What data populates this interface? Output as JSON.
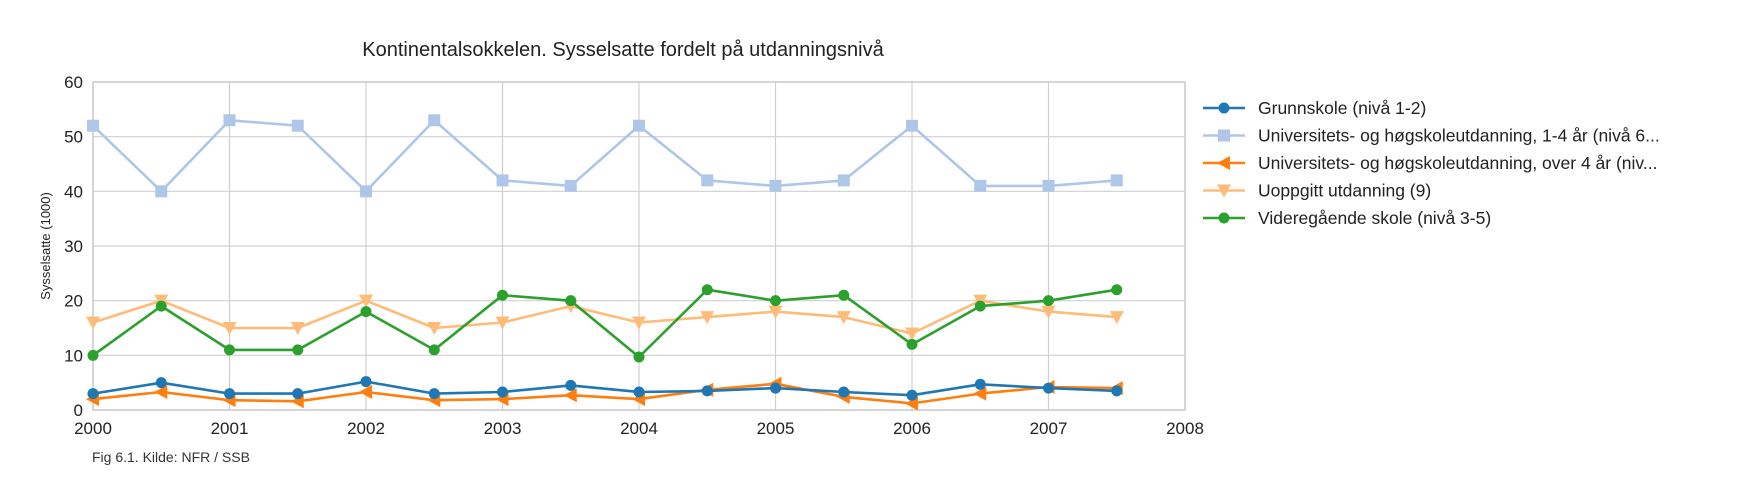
{
  "chart_data": {
    "type": "line",
    "title": "Kontinentalsokkelen. Sysselsatte fordelt på utdanningsnivå",
    "xlabel": "",
    "ylabel": "Sysselsatte (1000)",
    "xlim": [
      2000,
      2008
    ],
    "ylim": [
      0,
      60
    ],
    "x_ticks": [
      2000,
      2001,
      2002,
      2003,
      2004,
      2005,
      2006,
      2007,
      2008
    ],
    "y_ticks": [
      0,
      10,
      20,
      30,
      40,
      50,
      60
    ],
    "grid": true,
    "legend_position": "right",
    "x": [
      2000,
      2000.5,
      2001,
      2001.5,
      2002,
      2002.5,
      2003,
      2003.5,
      2004,
      2004.5,
      2005,
      2005.5,
      2006,
      2006.5,
      2007,
      2007.5
    ],
    "series": [
      {
        "name": "Grunnskole (nivå 1-2)",
        "legend_label": "Grunnskole (nivå 1-2)",
        "color": "#1f77b4",
        "light_color": "#1f77b4",
        "marker": "circle",
        "values": [
          3,
          5,
          3,
          3,
          5.2,
          3,
          3.3,
          4.5,
          3.3,
          3.5,
          4,
          3.3,
          2.7,
          4.7,
          4,
          3.5
        ]
      },
      {
        "name": "Universitets- og høgskoleutdanning, 1-4 år (nivå 6",
        "legend_label": "Universitets- og høgskoleutdanning, 1-4 år (nivå 6...",
        "color": "#aec7e8",
        "marker": "square",
        "values": [
          52,
          40,
          53,
          52,
          40,
          53,
          42,
          41,
          52,
          42,
          41,
          42,
          52,
          41,
          41,
          42
        ]
      },
      {
        "name": "Universitets- og høgskoleutdanning, over 4 år (niv",
        "legend_label": "Universitets- og høgskoleutdanning, over 4 år (niv...",
        "color": "#ff7f0e",
        "marker": "triangle-left",
        "values": [
          2,
          3.3,
          1.8,
          1.6,
          3.3,
          1.8,
          2,
          2.7,
          2,
          3.7,
          4.8,
          2.4,
          1.2,
          3,
          4.2,
          4
        ]
      },
      {
        "name": "Uoppgitt utdanning (9)",
        "legend_label": "Uoppgitt utdanning (9)",
        "color": "#ffbb78",
        "marker": "triangle-down",
        "values": [
          16,
          20,
          15,
          15,
          20,
          15,
          16,
          19,
          16,
          17,
          18,
          17,
          14,
          20,
          18,
          17
        ]
      },
      {
        "name": "Videregående skole (nivå 3-5)",
        "legend_label": "Videregående skole (nivå 3-5)",
        "color": "#2ca02c",
        "marker": "circle",
        "values": [
          10,
          19,
          11,
          11,
          18,
          11,
          21,
          20,
          9.7,
          22,
          20,
          21,
          12,
          19,
          20,
          22
        ]
      }
    ],
    "draw_order": [
      1,
      3,
      4,
      2,
      0
    ],
    "caption": "Fig 6.1. Kilde: NFR / SSB"
  }
}
